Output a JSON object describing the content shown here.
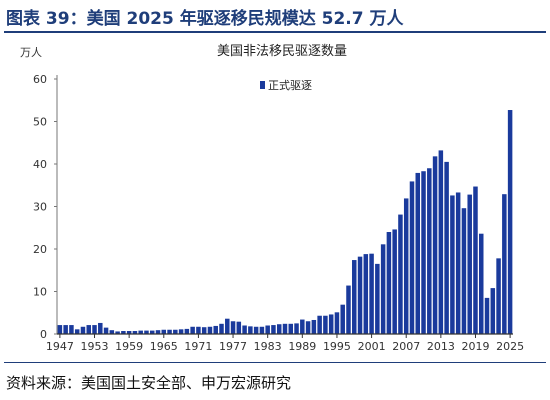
{
  "figure_title": "图表 39：美国 2025 年驱逐移民规模达 52.7 万人",
  "source_note": "资料来源：美国国土安全部、申万宏源研究",
  "colors": {
    "bar": "#1a3a9c",
    "title": "#1f3e7a",
    "axis": "#333333"
  },
  "chart_data": {
    "type": "bar",
    "title": "美国非法移民驱逐数量",
    "ylabel": "万人",
    "xlabel": "",
    "ylim": [
      0,
      60
    ],
    "yticks": [
      0,
      10,
      20,
      30,
      40,
      50,
      60
    ],
    "xtick_labels": [
      "1947",
      "1953",
      "1959",
      "1965",
      "1971",
      "1977",
      "1983",
      "1989",
      "1995",
      "2001",
      "2007",
      "2013",
      "2019",
      "2025"
    ],
    "grid": false,
    "legend_position": "top-center",
    "series": [
      {
        "name": "正式驱逐",
        "color": "#1a3a9c",
        "categories": [
          "1947",
          "1948",
          "1949",
          "1950",
          "1951",
          "1952",
          "1953",
          "1954",
          "1955",
          "1956",
          "1957",
          "1958",
          "1959",
          "1960",
          "1961",
          "1962",
          "1963",
          "1964",
          "1965",
          "1966",
          "1967",
          "1968",
          "1969",
          "1970",
          "1971",
          "1972",
          "1973",
          "1974",
          "1975",
          "1976",
          "1977",
          "1978",
          "1979",
          "1980",
          "1981",
          "1982",
          "1983",
          "1984",
          "1985",
          "1986",
          "1987",
          "1988",
          "1989",
          "1990",
          "1991",
          "1992",
          "1993",
          "1994",
          "1995",
          "1996",
          "1997",
          "1998",
          "1999",
          "2000",
          "2001",
          "2002",
          "2003",
          "2004",
          "2005",
          "2006",
          "2007",
          "2008",
          "2009",
          "2010",
          "2011",
          "2012",
          "2013",
          "2014",
          "2015",
          "2016",
          "2017",
          "2018",
          "2019",
          "2020",
          "2021",
          "2022",
          "2023",
          "2024",
          "2025"
        ],
        "values": [
          2.1,
          2.1,
          2.1,
          1.1,
          1.7,
          2.1,
          2.1,
          2.6,
          1.5,
          0.9,
          0.6,
          0.7,
          0.7,
          0.7,
          0.8,
          0.8,
          0.8,
          0.9,
          1.0,
          1.0,
          1.0,
          1.1,
          1.2,
          1.7,
          1.7,
          1.6,
          1.7,
          1.9,
          2.4,
          3.6,
          3.0,
          2.9,
          2.0,
          1.8,
          1.7,
          1.7,
          2.0,
          2.1,
          2.3,
          2.4,
          2.4,
          2.5,
          3.4,
          3.0,
          3.3,
          4.3,
          4.3,
          4.6,
          5.1,
          6.9,
          11.4,
          17.4,
          18.2,
          18.8,
          18.9,
          16.5,
          21.1,
          24.0,
          24.6,
          28.1,
          31.9,
          35.9,
          37.9,
          38.3,
          39.0,
          41.8,
          43.2,
          40.5,
          32.6,
          33.3,
          29.6,
          32.8,
          34.7,
          23.6,
          8.5,
          10.8,
          17.8,
          32.9,
          52.7
        ]
      }
    ]
  }
}
